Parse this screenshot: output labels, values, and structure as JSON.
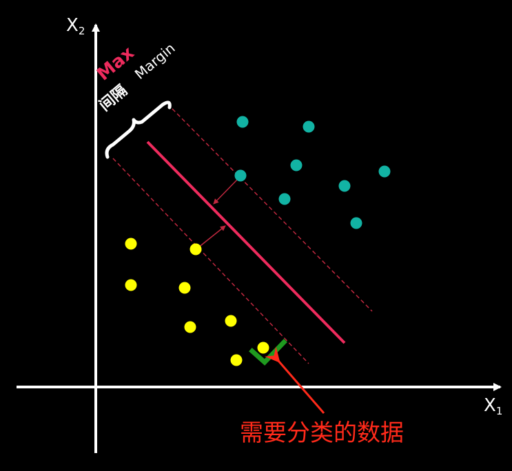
{
  "axes": {
    "x_label": "X",
    "x_subscript": "1",
    "y_label": "X",
    "y_subscript": "2"
  },
  "margin_label": {
    "max": "Max",
    "gap": "间隔",
    "margin": "Margin"
  },
  "annotation": {
    "text": "需要分类的数据"
  },
  "colors": {
    "background": "#000000",
    "axis": "#ffffff",
    "hyperplane": "#ee2b5d",
    "margin_lines": "#c0283f",
    "class_a": "#12b3a4",
    "class_b": "#ffff00",
    "check": "#1f9a1f",
    "annotation": "#ff2a1a",
    "brace": "#ffffff"
  },
  "icons": {
    "new_point_marker": "check-icon",
    "pointer": "arrow-icon"
  }
}
